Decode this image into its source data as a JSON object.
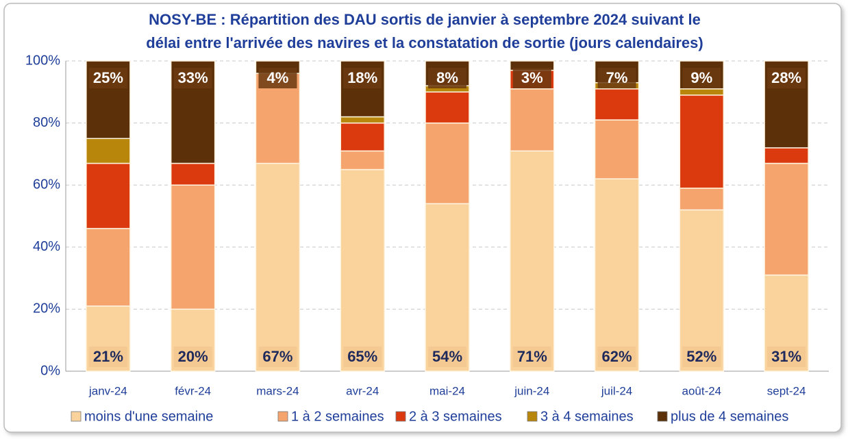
{
  "chart_data": {
    "type": "bar",
    "stacked": true,
    "title": [
      "NOSY-BE : Répartition des DAU sortis de janvier à septembre 2024 suivant le",
      "délai entre l'arrivée des navires et la constatation de sortie (jours calendaires)"
    ],
    "categories": [
      "janv-24",
      "févr-24",
      "mars-24",
      "avr-24",
      "mai-24",
      "juin-24",
      "juil-24",
      "août-24",
      "sept-24"
    ],
    "series": [
      {
        "name": "moins d'une semaine",
        "color": "#f9d29c",
        "values": [
          21,
          20,
          67,
          65,
          54,
          71,
          62,
          52,
          31
        ],
        "value_labels": [
          "21%",
          "20%",
          "67%",
          "65%",
          "54%",
          "71%",
          "62%",
          "52%",
          "31%"
        ]
      },
      {
        "name": "1 à 2 semaines",
        "color": "#f5a46e",
        "values": [
          25,
          40,
          29,
          6,
          26,
          20,
          19,
          7,
          36
        ]
      },
      {
        "name": "2 à 3 semaines",
        "color": "#db3a0e",
        "values": [
          21,
          7,
          0,
          9,
          10,
          6,
          10,
          30,
          5
        ]
      },
      {
        "name": "3 à 4 semaines",
        "color": "#b8860b",
        "values": [
          8,
          0,
          0,
          2,
          2,
          0,
          2,
          2,
          0
        ]
      },
      {
        "name": "plus de 4 semaines",
        "color": "#5c3008",
        "values": [
          25,
          33,
          4,
          18,
          8,
          3,
          7,
          9,
          28
        ],
        "value_labels": [
          "25%",
          "33%",
          "4%",
          "18%",
          "8%",
          "3%",
          "7%",
          "9%",
          "28%"
        ]
      }
    ],
    "ylim": [
      0,
      100
    ],
    "yticks": [
      {
        "value": 0,
        "label": "0%"
      },
      {
        "value": 20,
        "label": "20%"
      },
      {
        "value": 40,
        "label": "40%"
      },
      {
        "value": 60,
        "label": "60%"
      },
      {
        "value": 80,
        "label": "80%"
      },
      {
        "value": 100,
        "label": "100%"
      }
    ],
    "grid": true,
    "legend": "bottom"
  }
}
